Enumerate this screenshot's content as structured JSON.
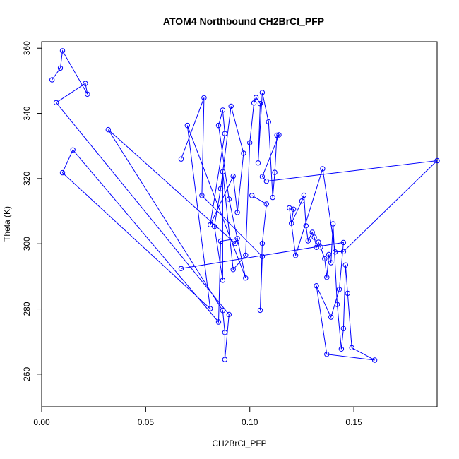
{
  "chart_data": {
    "type": "line",
    "title": "ATOM4 Northbound CH2BrCl_PFP",
    "xlabel": "CH2BrCl_PFP",
    "ylabel": "Theta (K)",
    "xlim": [
      0.0,
      0.19
    ],
    "ylim": [
      250,
      362
    ],
    "xticks": [
      0.0,
      0.05,
      0.1,
      0.15
    ],
    "xtick_labels": [
      "0.00",
      "0.05",
      "0.10",
      "0.15"
    ],
    "yticks": [
      260,
      280,
      300,
      320,
      340,
      360
    ],
    "ytick_labels": [
      "260",
      "280",
      "300",
      "320",
      "340",
      "360"
    ],
    "grid": false,
    "series_color": "#0000ff",
    "points": [
      {
        "x": 0.005,
        "y": 350.3
      },
      {
        "x": 0.009,
        "y": 353.9
      },
      {
        "x": 0.01,
        "y": 359.2
      },
      {
        "x": 0.022,
        "y": 345.9
      },
      {
        "x": 0.021,
        "y": 349.2
      },
      {
        "x": 0.007,
        "y": 343.3
      },
      {
        "x": 0.09,
        "y": 278.3
      },
      {
        "x": 0.088,
        "y": 264.5
      },
      {
        "x": 0.088,
        "y": 272.8
      },
      {
        "x": 0.087,
        "y": 279.5
      },
      {
        "x": 0.032,
        "y": 335.0
      },
      {
        "x": 0.093,
        "y": 300.1
      },
      {
        "x": 0.094,
        "y": 301.6
      },
      {
        "x": 0.086,
        "y": 300.8
      },
      {
        "x": 0.085,
        "y": 276.0
      },
      {
        "x": 0.015,
        "y": 328.8
      },
      {
        "x": 0.01,
        "y": 321.8
      },
      {
        "x": 0.081,
        "y": 280.1
      },
      {
        "x": 0.07,
        "y": 336.3
      },
      {
        "x": 0.098,
        "y": 289.5
      },
      {
        "x": 0.09,
        "y": 313.7
      },
      {
        "x": 0.085,
        "y": 336.3
      },
      {
        "x": 0.087,
        "y": 341.0
      },
      {
        "x": 0.088,
        "y": 333.8
      },
      {
        "x": 0.081,
        "y": 305.8
      },
      {
        "x": 0.092,
        "y": 320.7
      },
      {
        "x": 0.094,
        "y": 309.6
      },
      {
        "x": 0.097,
        "y": 327.8
      },
      {
        "x": 0.091,
        "y": 342.2
      },
      {
        "x": 0.086,
        "y": 316.9
      },
      {
        "x": 0.083,
        "y": 305.3
      },
      {
        "x": 0.087,
        "y": 288.8
      },
      {
        "x": 0.087,
        "y": 322.1
      },
      {
        "x": 0.092,
        "y": 292.1
      },
      {
        "x": 0.098,
        "y": 296.5
      },
      {
        "x": 0.1,
        "y": 331.0
      },
      {
        "x": 0.102,
        "y": 343.2
      },
      {
        "x": 0.103,
        "y": 344.9
      },
      {
        "x": 0.105,
        "y": 343.0
      },
      {
        "x": 0.104,
        "y": 324.8
      },
      {
        "x": 0.106,
        "y": 346.4
      },
      {
        "x": 0.109,
        "y": 337.4
      },
      {
        "x": 0.111,
        "y": 314.2
      },
      {
        "x": 0.112,
        "y": 321.9
      },
      {
        "x": 0.113,
        "y": 333.3
      },
      {
        "x": 0.114,
        "y": 333.4
      },
      {
        "x": 0.106,
        "y": 320.6
      },
      {
        "x": 0.108,
        "y": 319.2
      },
      {
        "x": 0.19,
        "y": 325.5
      },
      {
        "x": 0.145,
        "y": 297.6
      },
      {
        "x": 0.141,
        "y": 297.5
      },
      {
        "x": 0.135,
        "y": 323.0
      },
      {
        "x": 0.122,
        "y": 296.4
      },
      {
        "x": 0.119,
        "y": 311.0
      },
      {
        "x": 0.121,
        "y": 310.6
      },
      {
        "x": 0.12,
        "y": 306.3
      },
      {
        "x": 0.125,
        "y": 313.1
      },
      {
        "x": 0.126,
        "y": 314.9
      },
      {
        "x": 0.127,
        "y": 305.5
      },
      {
        "x": 0.128,
        "y": 300.9
      },
      {
        "x": 0.13,
        "y": 303.5
      },
      {
        "x": 0.131,
        "y": 302.0
      },
      {
        "x": 0.132,
        "y": 298.9
      },
      {
        "x": 0.133,
        "y": 300.5
      },
      {
        "x": 0.134,
        "y": 299.0
      },
      {
        "x": 0.136,
        "y": 295.4
      },
      {
        "x": 0.137,
        "y": 289.7
      },
      {
        "x": 0.138,
        "y": 296.7
      },
      {
        "x": 0.139,
        "y": 294.2
      },
      {
        "x": 0.14,
        "y": 306.1
      },
      {
        "x": 0.142,
        "y": 281.4
      },
      {
        "x": 0.144,
        "y": 267.7
      },
      {
        "x": 0.145,
        "y": 274.0
      },
      {
        "x": 0.146,
        "y": 293.5
      },
      {
        "x": 0.147,
        "y": 284.8
      },
      {
        "x": 0.149,
        "y": 268.1
      },
      {
        "x": 0.16,
        "y": 264.3
      },
      {
        "x": 0.137,
        "y": 266.1
      },
      {
        "x": 0.132,
        "y": 287.1
      },
      {
        "x": 0.139,
        "y": 277.5
      },
      {
        "x": 0.143,
        "y": 286.0
      },
      {
        "x": 0.145,
        "y": 300.4
      },
      {
        "x": 0.067,
        "y": 292.4
      },
      {
        "x": 0.067,
        "y": 326.0
      },
      {
        "x": 0.078,
        "y": 344.8
      },
      {
        "x": 0.077,
        "y": 314.8
      },
      {
        "x": 0.106,
        "y": 296.1
      },
      {
        "x": 0.105,
        "y": 279.6
      },
      {
        "x": 0.106,
        "y": 300.1
      },
      {
        "x": 0.108,
        "y": 312.2
      },
      {
        "x": 0.101,
        "y": 314.8
      }
    ]
  }
}
